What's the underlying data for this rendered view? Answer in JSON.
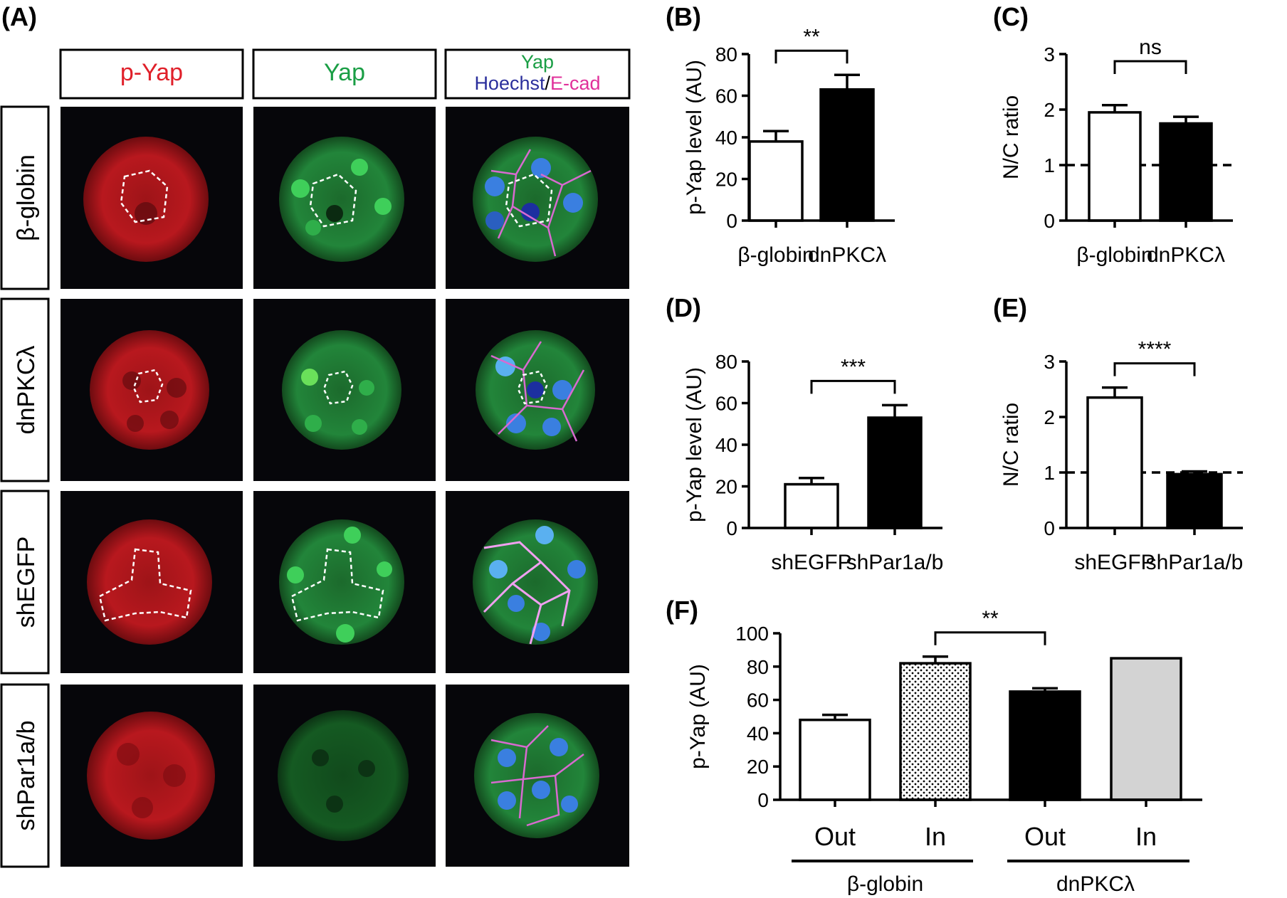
{
  "colors": {
    "red_channel": "#e0202a",
    "green_channel": "#1a9e45",
    "blue_channel": "#2b2f9c",
    "magenta_channel": "#e0309a",
    "image_background": "#06060a",
    "bar_white": "#ffffff",
    "bar_black": "#000000",
    "bar_gray": "#d3d3d3"
  },
  "panel_a": {
    "label": "(A)",
    "column_headers": [
      {
        "text": "p-Yap",
        "color": "#e0202a"
      },
      {
        "text": "Yap",
        "color": "#1a9e45"
      },
      {
        "merge_line1": "Yap",
        "merge_hoechst": "Hoechst",
        "merge_slash": "/",
        "merge_ecad": "E-cad"
      }
    ],
    "row_labels": [
      "β-globin",
      "dnPKCλ",
      "shEGFP",
      "shPar1a/b"
    ]
  },
  "chart_data": [
    {
      "id": "B",
      "label": "(B)",
      "type": "bar",
      "categories": [
        "β-globin",
        "dnPKCλ"
      ],
      "values": [
        38,
        63
      ],
      "errors": [
        5,
        7
      ],
      "bar_fills": [
        "#ffffff",
        "#000000"
      ],
      "ylabel": "p-Yap level (AU)",
      "ylim": [
        0,
        80
      ],
      "yticks": [
        "0",
        "20",
        "40",
        "60",
        "80"
      ],
      "significance": [
        {
          "from": 0,
          "to": 1,
          "text": "**"
        }
      ]
    },
    {
      "id": "C",
      "label": "(C)",
      "type": "bar",
      "categories": [
        "β-globin",
        "dnPKCλ"
      ],
      "values": [
        1.95,
        1.75
      ],
      "errors": [
        0.13,
        0.12
      ],
      "bar_fills": [
        "#ffffff",
        "#000000"
      ],
      "ylabel": "N/C ratio",
      "ylim": [
        0,
        3
      ],
      "yticks": [
        "0",
        "1",
        "2",
        "3"
      ],
      "reference_line": 1,
      "significance": [
        {
          "from": 0,
          "to": 1,
          "text": "ns"
        }
      ]
    },
    {
      "id": "D",
      "label": "(D)",
      "type": "bar",
      "categories": [
        "shEGFP",
        "shPar1a/b"
      ],
      "values": [
        21,
        53
      ],
      "errors": [
        3,
        6
      ],
      "bar_fills": [
        "#ffffff",
        "#000000"
      ],
      "ylabel": "p-Yap level (AU)",
      "ylim": [
        0,
        80
      ],
      "yticks": [
        "0",
        "20",
        "40",
        "60",
        "80"
      ],
      "significance": [
        {
          "from": 0,
          "to": 1,
          "text": "***"
        }
      ]
    },
    {
      "id": "E",
      "label": "(E)",
      "type": "bar",
      "categories": [
        "shEGFP",
        "shPar1a/b"
      ],
      "values": [
        2.35,
        0.97
      ],
      "errors": [
        0.18,
        0.05
      ],
      "bar_fills": [
        "#ffffff",
        "#000000"
      ],
      "ylabel": "N/C ratio",
      "ylim": [
        0,
        3
      ],
      "yticks": [
        "0",
        "1",
        "2",
        "3"
      ],
      "reference_line": 1,
      "significance": [
        {
          "from": 0,
          "to": 1,
          "text": "****"
        }
      ]
    },
    {
      "id": "F",
      "label": "(F)",
      "type": "bar",
      "categories": [
        "Out",
        "In",
        "Out",
        "In"
      ],
      "values": [
        48,
        82,
        65,
        85
      ],
      "errors": [
        3,
        4,
        2,
        0
      ],
      "bar_fills": [
        "#ffffff",
        "dotted",
        "#000000",
        "#d3d3d3"
      ],
      "ylabel": "p-Yap (AU)",
      "ylim": [
        0,
        100
      ],
      "yticks": [
        "0",
        "20",
        "40",
        "60",
        "80",
        "100"
      ],
      "groups": [
        {
          "label": "β-globin",
          "members": [
            0,
            1
          ]
        },
        {
          "label": "dnPKCλ",
          "members": [
            2,
            3
          ]
        }
      ],
      "significance": [
        {
          "from": 1,
          "to": 2,
          "text": "**"
        }
      ]
    }
  ]
}
